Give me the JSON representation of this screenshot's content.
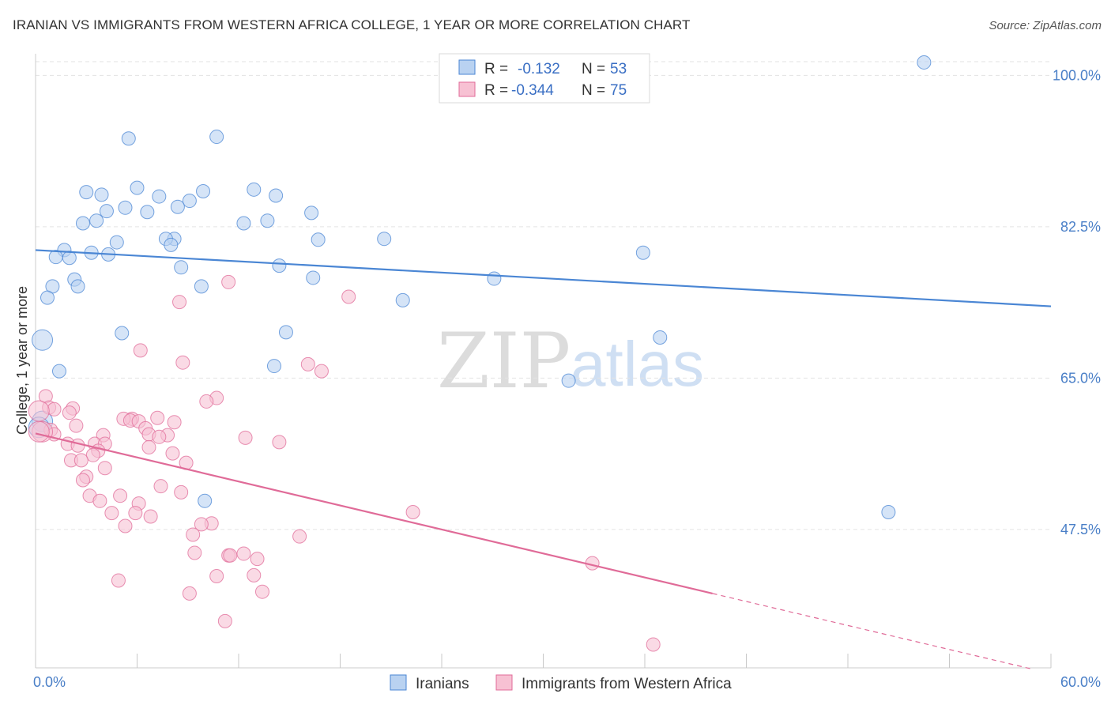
{
  "title": "IRANIAN VS IMMIGRANTS FROM WESTERN AFRICA COLLEGE, 1 YEAR OR MORE CORRELATION CHART",
  "source": "Source: ZipAtlas.com",
  "watermark": {
    "zip": "ZIP",
    "atlas": "atlas"
  },
  "colors": {
    "iranians": "#4a86d4",
    "iranians_fill": "#b9d2f1",
    "wafrica": "#e06b98",
    "wafrica_fill": "#f7c1d3",
    "tick": "#4a7fc7",
    "grid": "#e3e3e3"
  },
  "legend": {
    "r_label": "R =",
    "n_label": "N =",
    "rows": [
      {
        "r": "-0.132",
        "n": "53",
        "series": "iranians"
      },
      {
        "r": "-0.344",
        "n": "75",
        "series": "wafrica"
      }
    ]
  },
  "bottom_legend": [
    {
      "label": "Iranians",
      "series": "iranians"
    },
    {
      "label": "Immigrants from Western Africa",
      "series": "wafrica"
    }
  ],
  "chart_data": {
    "type": "scatter",
    "title": "IRANIAN VS IMMIGRANTS FROM WESTERN AFRICA COLLEGE, 1 YEAR OR MORE CORRELATION CHART",
    "xlabel": "",
    "ylabel": "College, 1 year or more",
    "xlim": [
      0,
      60
    ],
    "ylim": [
      31.5,
      102.5
    ],
    "x_tick_labels": [
      {
        "value": 0,
        "label": "0.0%"
      },
      {
        "value": 60,
        "label": "60.0%"
      }
    ],
    "y_tick_labels": [
      {
        "value": 100,
        "label": "100.0%"
      },
      {
        "value": 82.5,
        "label": "82.5%"
      },
      {
        "value": 65,
        "label": "65.0%"
      },
      {
        "value": 47.5,
        "label": "47.5%"
      }
    ],
    "x_minor_ticks": [
      6,
      12,
      18,
      24,
      30,
      36,
      42,
      48,
      54
    ],
    "series": [
      {
        "name": "Iranians",
        "key": "iranians",
        "r": -0.132,
        "n": 53,
        "trend": {
          "x": [
            0,
            60
          ],
          "y": [
            79.8,
            73.3
          ]
        },
        "points": [
          [
            52.5,
            101.5
          ],
          [
            5.5,
            92.7
          ],
          [
            10.7,
            92.9
          ],
          [
            6,
            87
          ],
          [
            3,
            86.5
          ],
          [
            3.9,
            86.2
          ],
          [
            7.3,
            86
          ],
          [
            9.9,
            86.6
          ],
          [
            12.9,
            86.8
          ],
          [
            14.2,
            86.1
          ],
          [
            9.1,
            85.5
          ],
          [
            8.4,
            84.8
          ],
          [
            5.3,
            84.7
          ],
          [
            4.2,
            84.3
          ],
          [
            6.6,
            84.2
          ],
          [
            16.3,
            84.1
          ],
          [
            3.6,
            83.2
          ],
          [
            2.8,
            82.9
          ],
          [
            12.3,
            82.9
          ],
          [
            13.7,
            83.2
          ],
          [
            8.2,
            81.1
          ],
          [
            7.7,
            81.1
          ],
          [
            16.7,
            81
          ],
          [
            20.6,
            81.1
          ],
          [
            4.8,
            80.7
          ],
          [
            8,
            80.4
          ],
          [
            1.7,
            79.8
          ],
          [
            3.3,
            79.5
          ],
          [
            4.3,
            79.3
          ],
          [
            1.2,
            79
          ],
          [
            2,
            78.9
          ],
          [
            35.9,
            79.5
          ],
          [
            14.4,
            78
          ],
          [
            8.6,
            77.8
          ],
          [
            16.4,
            76.6
          ],
          [
            27.1,
            76.5
          ],
          [
            2.3,
            76.4
          ],
          [
            1,
            75.6
          ],
          [
            9.8,
            75.6
          ],
          [
            2.5,
            75.6
          ],
          [
            0.7,
            74.3
          ],
          [
            21.7,
            74
          ],
          [
            5.1,
            70.2
          ],
          [
            14.8,
            70.3
          ],
          [
            36.9,
            69.7
          ],
          [
            0.4,
            69.4
          ],
          [
            14.1,
            66.4
          ],
          [
            1.4,
            65.8
          ],
          [
            31.5,
            64.7
          ],
          [
            0.4,
            60
          ],
          [
            10,
            50.8
          ],
          [
            50.4,
            49.5
          ],
          [
            0.2,
            59.3
          ]
        ]
      },
      {
        "name": "Immigrants from Western Africa",
        "key": "wafrica",
        "r": -0.344,
        "n": 75,
        "trend": {
          "x": [
            0,
            40
          ],
          "y": [
            58.6,
            40.1
          ]
        },
        "trend_dashed": {
          "x": [
            40,
            58.8
          ],
          "y": [
            40.1,
            31.4
          ]
        },
        "points": [
          [
            11.4,
            76.1
          ],
          [
            18.5,
            74.4
          ],
          [
            8.5,
            73.8
          ],
          [
            6.2,
            68.2
          ],
          [
            8.7,
            66.8
          ],
          [
            16.1,
            66.6
          ],
          [
            16.9,
            65.8
          ],
          [
            0.6,
            62.9
          ],
          [
            10.7,
            62.7
          ],
          [
            10.1,
            62.3
          ],
          [
            0.8,
            61.6
          ],
          [
            2.2,
            61.5
          ],
          [
            1.1,
            61.4
          ],
          [
            0.2,
            61.2
          ],
          [
            2,
            61
          ],
          [
            7.2,
            60.4
          ],
          [
            5.7,
            60.3
          ],
          [
            5.2,
            60.3
          ],
          [
            5.6,
            60.1
          ],
          [
            6.1,
            60
          ],
          [
            8.2,
            59.9
          ],
          [
            2.4,
            59.5
          ],
          [
            6.5,
            59.2
          ],
          [
            0.9,
            59
          ],
          [
            1.1,
            58.5
          ],
          [
            0.4,
            58.8
          ],
          [
            4,
            58.4
          ],
          [
            6.7,
            58.5
          ],
          [
            7.8,
            58.4
          ],
          [
            7.3,
            58.2
          ],
          [
            12.4,
            58.1
          ],
          [
            14.4,
            57.6
          ],
          [
            1.9,
            57.4
          ],
          [
            3.5,
            57.4
          ],
          [
            2.5,
            57.2
          ],
          [
            4.1,
            57.4
          ],
          [
            6.7,
            57
          ],
          [
            3.7,
            56.6
          ],
          [
            8.1,
            56.3
          ],
          [
            3.4,
            56.1
          ],
          [
            2.1,
            55.5
          ],
          [
            2.7,
            55.5
          ],
          [
            8.9,
            55.2
          ],
          [
            4.1,
            54.6
          ],
          [
            3,
            53.6
          ],
          [
            2.8,
            53.2
          ],
          [
            7.4,
            52.5
          ],
          [
            8.6,
            51.8
          ],
          [
            3.2,
            51.4
          ],
          [
            5,
            51.4
          ],
          [
            3.8,
            50.8
          ],
          [
            6.1,
            50.5
          ],
          [
            22.3,
            49.5
          ],
          [
            5.9,
            49.4
          ],
          [
            4.5,
            49.4
          ],
          [
            6.8,
            49
          ],
          [
            10.4,
            48.2
          ],
          [
            9.8,
            48.1
          ],
          [
            5.3,
            47.9
          ],
          [
            9.3,
            46.9
          ],
          [
            15.6,
            46.7
          ],
          [
            9.4,
            44.8
          ],
          [
            11.4,
            44.5
          ],
          [
            11.5,
            44.5
          ],
          [
            12.3,
            44.7
          ],
          [
            13.1,
            44.1
          ],
          [
            32.9,
            43.6
          ],
          [
            12.9,
            42.2
          ],
          [
            10.7,
            42.1
          ],
          [
            4.9,
            41.6
          ],
          [
            13.4,
            40.3
          ],
          [
            9.1,
            40.1
          ],
          [
            11.2,
            36.9
          ],
          [
            36.5,
            34.2
          ],
          [
            0.2,
            58.8
          ]
        ]
      }
    ]
  }
}
